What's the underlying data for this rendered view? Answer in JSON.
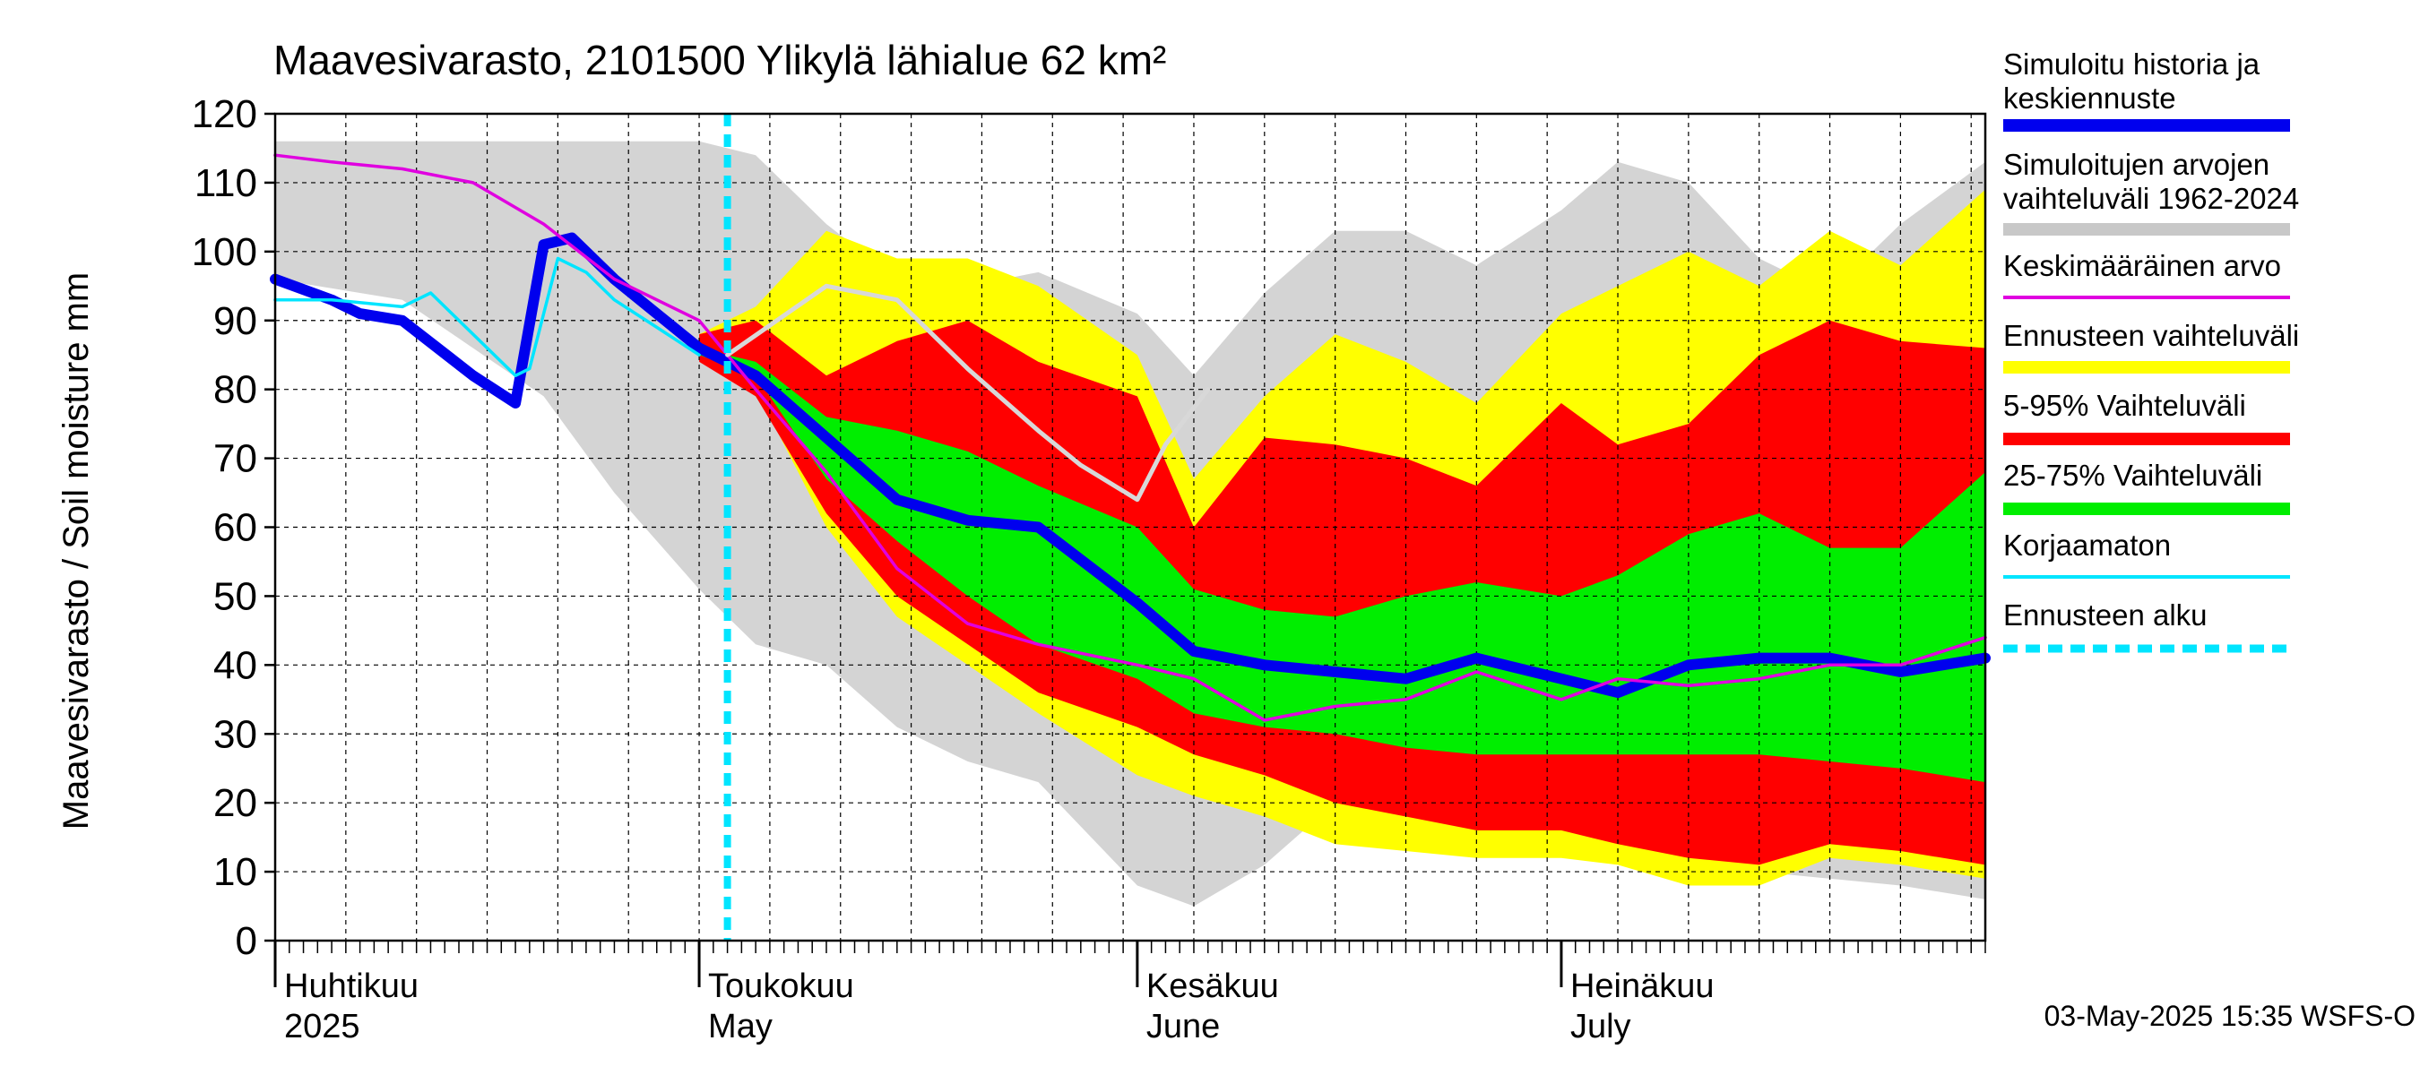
{
  "chart_data": {
    "type": "area",
    "title": "Maavesivarasto, 2101500 Ylikylä lähialue 62 km²",
    "ylabel": "Maavesivarasto / Soil moisture   mm",
    "ylim": [
      0,
      120
    ],
    "yticks": [
      0,
      10,
      20,
      30,
      40,
      50,
      60,
      70,
      80,
      90,
      100,
      110,
      120
    ],
    "x_range": [
      "2025-04-01",
      "2025-07-31"
    ],
    "month_labels": [
      {
        "fi": "Huhtikuu",
        "en": "2025",
        "date": "2025-04-01"
      },
      {
        "fi": "Toukokuu",
        "en": "May",
        "date": "2025-05-01"
      },
      {
        "fi": "Kesäkuu",
        "en": "June",
        "date": "2025-06-01"
      },
      {
        "fi": "Heinäkuu",
        "en": "July",
        "date": "2025-07-01"
      }
    ],
    "forecast_start": "2025-05-03",
    "footer": "03-May-2025 15:35 WSFS-O",
    "legend": [
      {
        "label": "Simuloitu historia ja keskiennuste",
        "color": "#0000ee",
        "style": "thick"
      },
      {
        "label": "Simuloitujen arvojen vaihteluväli 1962-2024",
        "color": "#c8c8c8",
        "style": "thick"
      },
      {
        "label": "Keskimääräinen arvo",
        "color": "#e000e0",
        "style": "thin"
      },
      {
        "label": "Ennusteen vaihteluväli",
        "color": "#ffff00",
        "style": "thick"
      },
      {
        "label": "5-95% Vaihteluväli",
        "color": "#ff0000",
        "style": "thick"
      },
      {
        "label": "25-75% Vaihteluväli",
        "color": "#00ee00",
        "style": "thick"
      },
      {
        "label": "Korjaamaton",
        "color": "#00e5ff",
        "style": "thin"
      },
      {
        "label": "Ennusteen alku",
        "color": "#00e5ff",
        "style": "dashed"
      }
    ],
    "bands": {
      "history_range": {
        "color": "#d4d4d4",
        "x": [
          "2025-04-01",
          "2025-04-10",
          "2025-04-20",
          "2025-04-25",
          "2025-05-01",
          "2025-05-05",
          "2025-05-10",
          "2025-05-15",
          "2025-05-20",
          "2025-05-25",
          "2025-06-01",
          "2025-06-05",
          "2025-06-10",
          "2025-06-15",
          "2025-06-20",
          "2025-06-25",
          "2025-07-01",
          "2025-07-05",
          "2025-07-10",
          "2025-07-15",
          "2025-07-20",
          "2025-07-25",
          "2025-07-31"
        ],
        "upper": [
          116,
          116,
          116,
          116,
          116,
          114,
          104,
          96,
          95,
          97,
          91,
          82,
          94,
          103,
          103,
          98,
          106,
          113,
          110,
          99,
          94,
          104,
          113
        ],
        "lower": [
          96,
          93,
          79,
          65,
          51,
          43,
          40,
          31,
          26,
          23,
          8,
          5,
          11,
          20,
          15,
          14,
          13,
          12,
          11,
          10,
          9,
          8,
          6
        ]
      },
      "forecast_range": {
        "color": "#ffff00",
        "x": [
          "2025-05-01",
          "2025-05-05",
          "2025-05-10",
          "2025-05-15",
          "2025-05-20",
          "2025-05-25",
          "2025-06-01",
          "2025-06-05",
          "2025-06-10",
          "2025-06-15",
          "2025-06-20",
          "2025-06-25",
          "2025-07-01",
          "2025-07-05",
          "2025-07-10",
          "2025-07-15",
          "2025-07-20",
          "2025-07-25",
          "2025-07-31"
        ],
        "upper": [
          88,
          92,
          103,
          99,
          99,
          95,
          85,
          67,
          79,
          88,
          84,
          78,
          91,
          95,
          100,
          95,
          103,
          98,
          109
        ],
        "lower": [
          85,
          80,
          60,
          47,
          40,
          33,
          24,
          21,
          18,
          14,
          13,
          12,
          12,
          11,
          8,
          8,
          12,
          11,
          9
        ]
      },
      "p5_95": {
        "color": "#ff0000",
        "x": [
          "2025-05-01",
          "2025-05-05",
          "2025-05-10",
          "2025-05-15",
          "2025-05-20",
          "2025-05-25",
          "2025-06-01",
          "2025-06-05",
          "2025-06-10",
          "2025-06-15",
          "2025-06-20",
          "2025-06-25",
          "2025-07-01",
          "2025-07-05",
          "2025-07-10",
          "2025-07-15",
          "2025-07-20",
          "2025-07-25",
          "2025-07-31"
        ],
        "upper": [
          88,
          90,
          82,
          87,
          90,
          84,
          79,
          60,
          73,
          72,
          70,
          66,
          78,
          72,
          75,
          85,
          90,
          87,
          86
        ],
        "lower": [
          84,
          79,
          62,
          50,
          43,
          36,
          31,
          27,
          24,
          20,
          18,
          16,
          16,
          14,
          12,
          11,
          14,
          13,
          11
        ]
      },
      "p25_75": {
        "color": "#00ee00",
        "x": [
          "2025-05-01",
          "2025-05-05",
          "2025-05-10",
          "2025-05-15",
          "2025-05-20",
          "2025-05-25",
          "2025-06-01",
          "2025-06-05",
          "2025-06-10",
          "2025-06-15",
          "2025-06-20",
          "2025-06-25",
          "2025-07-01",
          "2025-07-05",
          "2025-07-10",
          "2025-07-15",
          "2025-07-20",
          "2025-07-25",
          "2025-07-31"
        ],
        "upper": [
          86,
          84,
          76,
          74,
          71,
          66,
          60,
          51,
          48,
          47,
          50,
          52,
          50,
          53,
          59,
          62,
          57,
          57,
          68
        ],
        "lower": [
          85,
          82,
          67,
          58,
          50,
          43,
          38,
          33,
          31,
          30,
          28,
          27,
          27,
          27,
          27,
          27,
          26,
          25,
          23
        ]
      }
    },
    "series": [
      {
        "name": "Simuloitu historia ja keskiennuste",
        "color": "#0000ee",
        "x": [
          "2025-04-01",
          "2025-04-05",
          "2025-04-07",
          "2025-04-10",
          "2025-04-15",
          "2025-04-18",
          "2025-04-20",
          "2025-04-22",
          "2025-04-25",
          "2025-04-28",
          "2025-05-01",
          "2025-05-05",
          "2025-05-10",
          "2025-05-15",
          "2025-05-20",
          "2025-05-25",
          "2025-06-01",
          "2025-06-05",
          "2025-06-10",
          "2025-06-15",
          "2025-06-20",
          "2025-06-25",
          "2025-07-01",
          "2025-07-05",
          "2025-07-10",
          "2025-07-15",
          "2025-07-20",
          "2025-07-25",
          "2025-07-31"
        ],
        "y": [
          96,
          93,
          91,
          90,
          82,
          78,
          101,
          102,
          96,
          91,
          86,
          82,
          73,
          64,
          61,
          60,
          49,
          42,
          40,
          39,
          38,
          41,
          38,
          36,
          40,
          41,
          41,
          39,
          41
        ]
      },
      {
        "name": "Keskimääräinen arvo",
        "color": "#e000e0",
        "x": [
          "2025-04-01",
          "2025-04-05",
          "2025-04-10",
          "2025-04-15",
          "2025-04-20",
          "2025-04-25",
          "2025-05-01",
          "2025-05-05",
          "2025-05-10",
          "2025-05-15",
          "2025-05-20",
          "2025-05-25",
          "2025-06-01",
          "2025-06-05",
          "2025-06-10",
          "2025-06-15",
          "2025-06-20",
          "2025-06-25",
          "2025-07-01",
          "2025-07-05",
          "2025-07-10",
          "2025-07-15",
          "2025-07-20",
          "2025-07-25",
          "2025-07-31"
        ],
        "y": [
          114,
          113,
          112,
          110,
          104,
          96,
          90,
          80,
          68,
          54,
          46,
          43,
          40,
          38,
          32,
          34,
          35,
          39,
          35,
          38,
          37,
          38,
          40,
          40,
          44
        ]
      },
      {
        "name": "Korjaamaton",
        "color": "#00e5ff",
        "x": [
          "2025-04-01",
          "2025-04-05",
          "2025-04-10",
          "2025-04-12",
          "2025-04-15",
          "2025-04-18",
          "2025-04-19",
          "2025-04-21",
          "2025-04-23",
          "2025-04-25",
          "2025-04-28",
          "2025-05-01"
        ],
        "y": [
          93,
          93,
          92,
          94,
          88,
          82,
          83,
          99,
          97,
          93,
          89,
          85
        ]
      },
      {
        "name": "history_gray_line",
        "color": "#d8d8d8",
        "x": [
          "2025-05-03",
          "2025-05-10",
          "2025-05-15",
          "2025-05-20",
          "2025-05-25",
          "2025-05-28",
          "2025-06-01",
          "2025-06-03",
          "2025-06-06"
        ],
        "y": [
          85,
          95,
          93,
          83,
          74,
          69,
          64,
          72,
          80
        ]
      }
    ]
  }
}
